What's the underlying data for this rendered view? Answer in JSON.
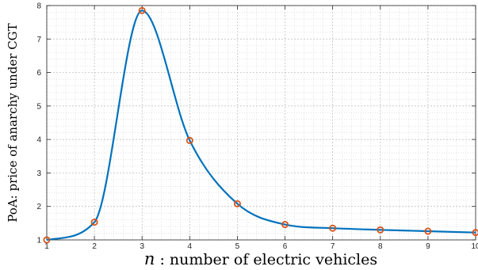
{
  "chart_data": {
    "type": "line",
    "title": "",
    "xlabel_var": "n",
    "xlabel_text": " : number of electric vehicles",
    "ylabel": "PoA: price of anarchy under CGT",
    "xlim": [
      1,
      10
    ],
    "ylim": [
      1,
      8
    ],
    "x_ticks": [
      "1",
      "2",
      "3",
      "4",
      "5",
      "6",
      "7",
      "8",
      "9",
      "10"
    ],
    "y_ticks": [
      "1",
      "2",
      "3",
      "4",
      "5",
      "6",
      "7",
      "8"
    ],
    "grid": true,
    "minor_grid": true,
    "x": [
      1,
      2,
      3,
      4,
      5,
      6,
      7,
      8,
      9,
      10
    ],
    "values": [
      1.0,
      1.53,
      7.85,
      3.97,
      2.08,
      1.46,
      1.35,
      1.3,
      1.26,
      1.22
    ],
    "line_color": "#0072bd",
    "marker_color": "#d95319"
  }
}
